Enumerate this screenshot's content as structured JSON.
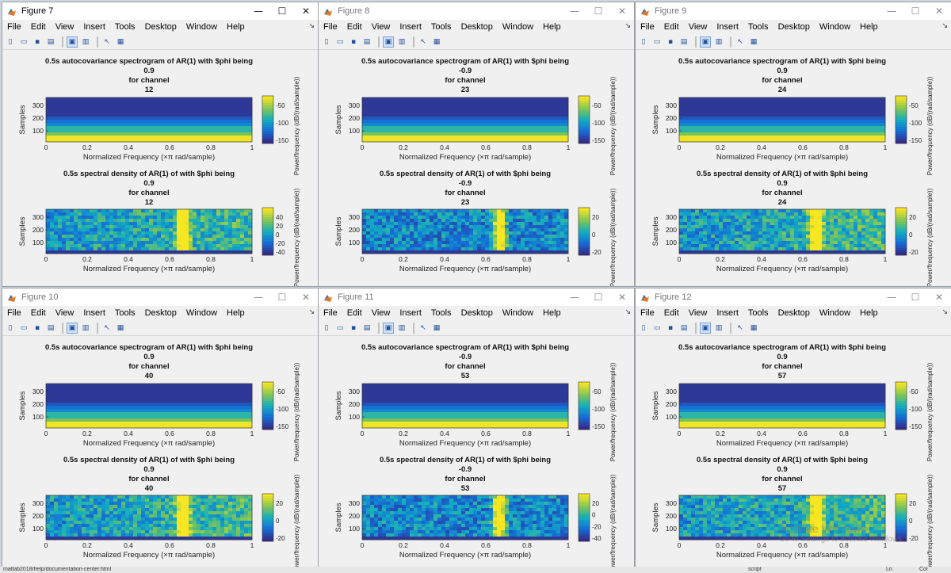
{
  "menu": [
    "File",
    "Edit",
    "View",
    "Insert",
    "Tools",
    "Desktop",
    "Window",
    "Help"
  ],
  "window_controls": {
    "minimize": "—",
    "maximize": "☐",
    "close": "✕",
    "dock": "↘"
  },
  "colors": {
    "bg_low": "#3b2ea8",
    "bg_mid": "#1e90d2",
    "teal": "#25b59e",
    "green": "#8cc63f",
    "yellow": "#f5e624"
  },
  "labels": {
    "samples": "Samples",
    "xlabel": "Normalized Frequency  (×π rad/sample)",
    "cb_label": "Power/frequency (dB/(rad/sample))",
    "spec_title_prefix": "0.5s autocovariance spectrogram of AR(1) with $phi being",
    "psd_title_prefix": "0.5s spectral density of AR(1) of with $phi being",
    "for_channel": "for channel",
    "x_ticks": [
      "0",
      "0.2",
      "0.4",
      "0.6",
      "0.8",
      "1"
    ],
    "y_ticks": [
      "300",
      "200",
      "100"
    ]
  },
  "figures": [
    {
      "title": "Figure 7",
      "phi": "0.9",
      "channel": "12",
      "spec_cb": [
        "-50",
        "-100",
        "-150"
      ],
      "psd_cb": [
        "40",
        "20",
        "0",
        "-20",
        "-40"
      ],
      "active": true
    },
    {
      "title": "Figure 8",
      "phi": "-0.9",
      "channel": "23",
      "spec_cb": [
        "-50",
        "-100",
        "-150"
      ],
      "psd_cb": [
        "20",
        "0",
        "-20"
      ],
      "active": false
    },
    {
      "title": "Figure 9",
      "phi": "0.9",
      "channel": "24",
      "spec_cb": [
        "-50",
        "-100",
        "-150"
      ],
      "psd_cb": [
        "20",
        "0",
        "-20"
      ],
      "active": false
    },
    {
      "title": "Figure 10",
      "phi": "0.9",
      "channel": "40",
      "spec_cb": [
        "-50",
        "-100",
        "-150"
      ],
      "psd_cb": [
        "20",
        "0",
        "-20"
      ],
      "active": false
    },
    {
      "title": "Figure 11",
      "phi": "-0.9",
      "channel": "53",
      "spec_cb": [
        "-50",
        "-100",
        "-150"
      ],
      "psd_cb": [
        "20",
        "0",
        "-20",
        "-40"
      ],
      "active": false
    },
    {
      "title": "Figure 12",
      "phi": "0.9",
      "channel": "57",
      "spec_cb": [
        "-50",
        "-100",
        "-150"
      ],
      "psd_cb": [
        "20",
        "0",
        "-20"
      ],
      "active": false
    }
  ],
  "watermark": {
    "line1": "Activate Windows",
    "line2": "Go to Settings to activate Windows."
  },
  "taskstrip": {
    "path": "matlab2018/help/documentation-center.html",
    "script": "script",
    "ln": "Ln",
    "col": "Col"
  }
}
